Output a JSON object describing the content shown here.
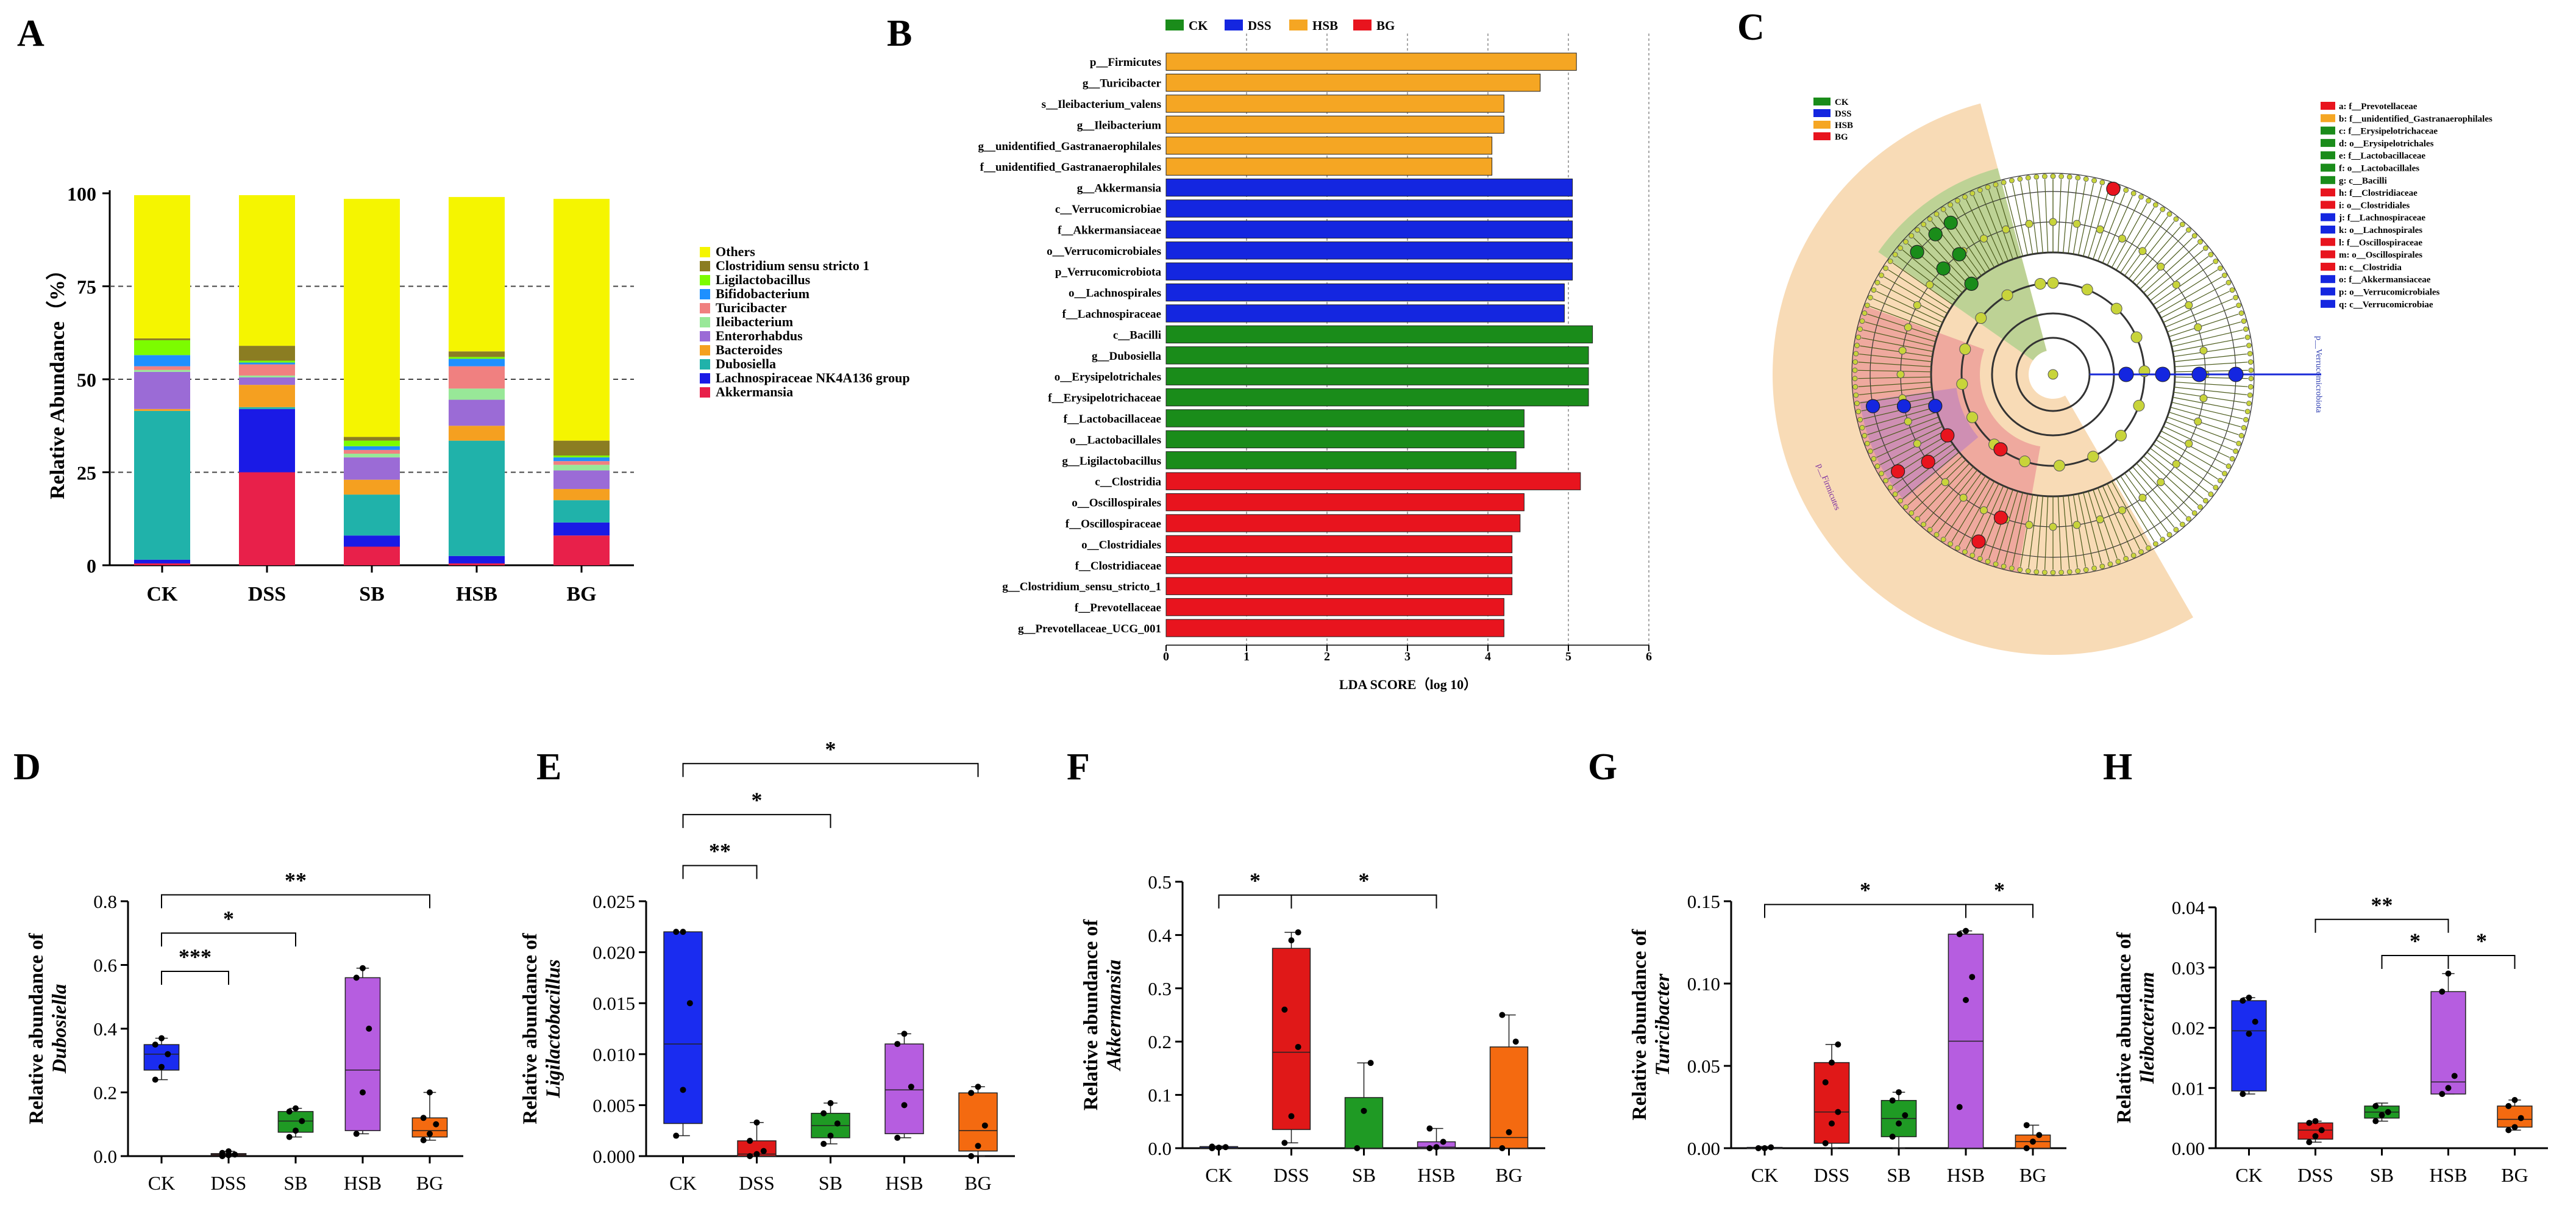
{
  "panel_letters": [
    "A",
    "B",
    "C",
    "D",
    "E",
    "F",
    "G",
    "H"
  ],
  "colors": {
    "CK": "#1a8c1a",
    "DSS": "#1426e0",
    "HSB": "#f5a623",
    "BG": "#e8141e",
    "box_CK": "#1a2cf0",
    "box_DSS": "#e01818",
    "box_SB": "#1f9a24",
    "box_HSB": "#b65de0",
    "box_BG": "#f46a10"
  },
  "chart_data": [
    {
      "panel": "A",
      "type": "bar",
      "stacked": true,
      "title": "",
      "ylabel": "Relative Abundance（%）",
      "xlabel": "",
      "ylim": [
        0,
        100
      ],
      "yticks": [
        "0",
        "25",
        "50",
        "75",
        "100"
      ],
      "categories": [
        "CK",
        "DSS",
        "SB",
        "HSB",
        "BG"
      ],
      "series": [
        {
          "name": "Akkermansia",
          "color": "#e8204a",
          "values": [
            0.5,
            25,
            5,
            0.5,
            8
          ]
        },
        {
          "name": "Lachnospiraceae NK4A136 group",
          "color": "#1a1ae6",
          "values": [
            1,
            17,
            3,
            2,
            3.5
          ]
        },
        {
          "name": "Dubosiella",
          "color": "#20b2aa",
          "values": [
            40,
            0.5,
            11,
            31,
            6
          ]
        },
        {
          "name": "Bacteroides",
          "color": "#f5a020",
          "values": [
            0.5,
            6,
            4,
            4,
            3
          ]
        },
        {
          "name": "Enterorhabdus",
          "color": "#9b6bd6",
          "values": [
            10,
            2,
            6,
            7,
            5
          ]
        },
        {
          "name": "Ileibacterium",
          "color": "#98e898",
          "values": [
            0.5,
            0.5,
            1,
            3,
            1.5
          ]
        },
        {
          "name": "Turicibacter",
          "color": "#f08080",
          "values": [
            1,
            3,
            1,
            6,
            1
          ]
        },
        {
          "name": "Bifidobacterium",
          "color": "#1e90ff",
          "values": [
            3,
            0.5,
            1,
            2,
            1
          ]
        },
        {
          "name": "Ligilactobacillus",
          "color": "#7cfc00",
          "values": [
            4,
            0.5,
            1.5,
            0.5,
            0.5
          ]
        },
        {
          "name": "Clostridium sensu stricto 1",
          "color": "#8b7d22",
          "values": [
            0.5,
            4,
            1,
            1.5,
            4
          ]
        },
        {
          "name": "Others",
          "color": "#f5f500",
          "values": [
            38.5,
            40.5,
            64,
            41.5,
            65
          ]
        }
      ],
      "legend_order": [
        "Others",
        "Clostridium sensu stricto 1",
        "Ligilactobacillus",
        "Bifidobacterium",
        "Turicibacter",
        "Ileibacterium",
        "Enterorhabdus",
        "Bacteroides",
        "Dubosiella",
        "Lachnospiraceae NK4A136 group",
        "Akkermansia"
      ]
    },
    {
      "panel": "B",
      "type": "bar",
      "orientation": "horizontal",
      "title": "",
      "xlabel": "LDA SCORE（log 10）",
      "xlim": [
        0,
        6
      ],
      "xticks": [
        "0",
        "1",
        "2",
        "3",
        "4",
        "5",
        "6"
      ],
      "legend": [
        "CK",
        "DSS",
        "HSB",
        "BG"
      ],
      "bars": [
        {
          "label": "p__Firmicutes",
          "group": "HSB",
          "value": 5.1
        },
        {
          "label": "g__Turicibacter",
          "group": "HSB",
          "value": 4.65
        },
        {
          "label": "s__Ileibacterium_valens",
          "group": "HSB",
          "value": 4.2
        },
        {
          "label": "g__Ileibacterium",
          "group": "HSB",
          "value": 4.2
        },
        {
          "label": "g__unidentified_Gastranaerophilales",
          "group": "HSB",
          "value": 4.05
        },
        {
          "label": "f__unidentified_Gastranaerophilales",
          "group": "HSB",
          "value": 4.05
        },
        {
          "label": "g__Akkermansia",
          "group": "DSS",
          "value": 5.05
        },
        {
          "label": "c__Verrucomicrobiae",
          "group": "DSS",
          "value": 5.05
        },
        {
          "label": "f__Akkermansiaceae",
          "group": "DSS",
          "value": 5.05
        },
        {
          "label": "o__Verrucomicrobiales",
          "group": "DSS",
          "value": 5.05
        },
        {
          "label": "p_Verrucomicrobiota",
          "group": "DSS",
          "value": 5.05
        },
        {
          "label": "o__Lachnospirales",
          "group": "DSS",
          "value": 4.95
        },
        {
          "label": "f__Lachnospiraceae",
          "group": "DSS",
          "value": 4.95
        },
        {
          "label": "c__Bacilli",
          "group": "CK",
          "value": 5.3
        },
        {
          "label": "g__Dubosiella",
          "group": "CK",
          "value": 5.25
        },
        {
          "label": "o__Erysipelotrichales",
          "group": "CK",
          "value": 5.25
        },
        {
          "label": "f__Erysipelotrichaceae",
          "group": "CK",
          "value": 5.25
        },
        {
          "label": "f__Lactobacillaceae",
          "group": "CK",
          "value": 4.45
        },
        {
          "label": "o__Lactobacillales",
          "group": "CK",
          "value": 4.45
        },
        {
          "label": "g__Ligilactobacillus",
          "group": "CK",
          "value": 4.35
        },
        {
          "label": "c__Clostridia",
          "group": "BG",
          "value": 5.15
        },
        {
          "label": "o__Oscillospirales",
          "group": "BG",
          "value": 4.45
        },
        {
          "label": "f__Oscillospiraceae",
          "group": "BG",
          "value": 4.4
        },
        {
          "label": "o__Clostridiales",
          "group": "BG",
          "value": 4.3
        },
        {
          "label": "f__Clostridiaceae",
          "group": "BG",
          "value": 4.3
        },
        {
          "label": "g__Clostridium_sensu_stricto_1",
          "group": "BG",
          "value": 4.3
        },
        {
          "label": "f__Prevotellaceae",
          "group": "BG",
          "value": 4.2
        },
        {
          "label": "g__Prevotellaceae_UCG_001",
          "group": "BG",
          "value": 4.2
        }
      ]
    },
    {
      "panel": "C",
      "type": "other",
      "subtype": "cladogram",
      "legend_groups": [
        "CK",
        "DSS",
        "HSB",
        "BG"
      ],
      "outer_label_1": "p__Verrucomicrobiota",
      "outer_label_2": "p__Firmicutes",
      "key": [
        {
          "letter": "a",
          "label": "a: f__Prevotellaceae",
          "group": "BG"
        },
        {
          "letter": "b",
          "label": "b: f__unidentified_Gastranaerophilales",
          "group": "HSB"
        },
        {
          "letter": "c",
          "label": "c: f__Erysipelotrichaceae",
          "group": "CK"
        },
        {
          "letter": "d",
          "label": "d: o__Erysipelotrichales",
          "group": "CK"
        },
        {
          "letter": "e",
          "label": "e: f__Lactobacillaceae",
          "group": "CK"
        },
        {
          "letter": "f",
          "label": "f: o__Lactobacillales",
          "group": "CK"
        },
        {
          "letter": "g",
          "label": "g: c__Bacilli",
          "group": "CK"
        },
        {
          "letter": "h",
          "label": "h: f__Clostridiaceae",
          "group": "BG"
        },
        {
          "letter": "i",
          "label": "i: o__Clostridiales",
          "group": "BG"
        },
        {
          "letter": "j",
          "label": "j: f__Lachnospiraceae",
          "group": "DSS"
        },
        {
          "letter": "k",
          "label": "k: o__Lachnospirales",
          "group": "DSS"
        },
        {
          "letter": "l",
          "label": "l: f__Oscillospiraceae",
          "group": "BG"
        },
        {
          "letter": "m",
          "label": "m: o__Oscillospirales",
          "group": "BG"
        },
        {
          "letter": "n",
          "label": "n: c__Clostridia",
          "group": "BG"
        },
        {
          "letter": "o",
          "label": "o: f__Akkermansiaceae",
          "group": "DSS"
        },
        {
          "letter": "p",
          "label": "p: o__Verrucomicrobiales",
          "group": "DSS"
        },
        {
          "letter": "q",
          "label": "q: c__Verrucomicrobiae",
          "group": "DSS"
        }
      ]
    },
    {
      "panel": "D",
      "type": "box",
      "ylabel_prefix": "Relative abundance of",
      "ylabel_taxon": "Dubosiella",
      "ylim": [
        0,
        0.8
      ],
      "yticks": [
        "0.0",
        "0.2",
        "0.4",
        "0.6",
        "0.8"
      ],
      "categories": [
        "CK",
        "DSS",
        "SB",
        "HSB",
        "BG"
      ],
      "boxes": [
        {
          "min": 0.24,
          "q1": 0.27,
          "median": 0.32,
          "q3": 0.35,
          "max": 0.37,
          "points": [
            0.24,
            0.28,
            0.32,
            0.35,
            0.37
          ]
        },
        {
          "min": 0.0,
          "q1": 0.002,
          "median": 0.005,
          "q3": 0.008,
          "max": 0.015,
          "points": [
            0.0,
            0.003,
            0.005,
            0.01,
            0.015
          ]
        },
        {
          "min": 0.06,
          "q1": 0.075,
          "median": 0.11,
          "q3": 0.14,
          "max": 0.15,
          "points": [
            0.06,
            0.08,
            0.11,
            0.14,
            0.15
          ]
        },
        {
          "min": 0.07,
          "q1": 0.08,
          "median": 0.27,
          "q3": 0.56,
          "max": 0.59,
          "points": [
            0.07,
            0.2,
            0.4,
            0.56,
            0.59
          ]
        },
        {
          "min": 0.05,
          "q1": 0.06,
          "median": 0.08,
          "q3": 0.12,
          "max": 0.2,
          "points": [
            0.05,
            0.07,
            0.1,
            0.12,
            0.2
          ]
        }
      ],
      "brackets": [
        {
          "from": "CK",
          "to": "DSS",
          "label": "***",
          "y": 0.58
        },
        {
          "from": "CK",
          "to": "SB",
          "label": "*",
          "y": 0.7
        },
        {
          "from": "CK",
          "to": "BG",
          "label": "**",
          "y": 0.82
        }
      ]
    },
    {
      "panel": "E",
      "type": "box",
      "ylabel_prefix": "Relative abundance of",
      "ylabel_taxon": "Ligilactobacillus",
      "ylim": [
        0,
        0.025
      ],
      "yticks": [
        "0.000",
        "0.005",
        "0.010",
        "0.015",
        "0.020",
        "0.025"
      ],
      "categories": [
        "CK",
        "DSS",
        "SB",
        "HSB",
        "BG"
      ],
      "boxes": [
        {
          "min": 0.002,
          "q1": 0.0032,
          "median": 0.011,
          "q3": 0.022,
          "max": 0.022,
          "points": [
            0.002,
            0.0065,
            0.015,
            0.022,
            0.022
          ]
        },
        {
          "min": 0.0,
          "q1": 0.0,
          "median": 0.0002,
          "q3": 0.0015,
          "max": 0.0033,
          "points": [
            0.0,
            0.0002,
            0.0005,
            0.0015,
            0.0033
          ]
        },
        {
          "min": 0.0012,
          "q1": 0.0018,
          "median": 0.003,
          "q3": 0.0042,
          "max": 0.0052,
          "points": [
            0.0012,
            0.002,
            0.0032,
            0.0042,
            0.0052
          ]
        },
        {
          "min": 0.0018,
          "q1": 0.0022,
          "median": 0.0065,
          "q3": 0.011,
          "max": 0.012,
          "points": [
            0.0018,
            0.005,
            0.0068,
            0.011,
            0.012
          ]
        },
        {
          "min": 0.0,
          "q1": 0.0005,
          "median": 0.0025,
          "q3": 0.0062,
          "max": 0.0068,
          "points": [
            0.0,
            0.001,
            0.003,
            0.0062,
            0.0068
          ]
        }
      ],
      "brackets": [
        {
          "from": "CK",
          "to": "DSS",
          "label": "**",
          "y": 0.0285
        },
        {
          "from": "CK",
          "to": "SB",
          "label": "*",
          "y": 0.0335
        },
        {
          "from": "CK",
          "to": "BG",
          "label": "*",
          "y": 0.0385
        }
      ]
    },
    {
      "panel": "F",
      "type": "box",
      "ylabel_prefix": "Relative abundance of",
      "ylabel_taxon": "Akkermansia",
      "ylim": [
        0,
        0.5
      ],
      "yticks": [
        "0.0",
        "0.1",
        "0.2",
        "0.3",
        "0.4",
        "0.5"
      ],
      "categories": [
        "CK",
        "DSS",
        "SB",
        "HSB",
        "BG"
      ],
      "boxes": [
        {
          "min": 0.0,
          "q1": 0.0,
          "median": 0.001,
          "q3": 0.003,
          "max": 0.004,
          "points": [
            0.0,
            0.001,
            0.002,
            0.003
          ]
        },
        {
          "min": 0.01,
          "q1": 0.035,
          "median": 0.18,
          "q3": 0.375,
          "max": 0.405,
          "points": [
            0.01,
            0.06,
            0.19,
            0.26,
            0.39,
            0.405
          ]
        },
        {
          "min": 0.0,
          "q1": 0.0,
          "median": 0.0,
          "q3": 0.095,
          "max": 0.16,
          "points": [
            0.0,
            0.07,
            0.16
          ]
        },
        {
          "min": 0.0,
          "q1": 0.0,
          "median": 0.002,
          "q3": 0.012,
          "max": 0.037,
          "points": [
            0.0,
            0.002,
            0.012,
            0.037
          ]
        },
        {
          "min": 0.0,
          "q1": 0.0,
          "median": 0.02,
          "q3": 0.19,
          "max": 0.25,
          "points": [
            0.0,
            0.03,
            0.2,
            0.25
          ]
        }
      ],
      "brackets": [
        {
          "from": "CK",
          "to": "DSS",
          "label": "*",
          "y": 0.475
        },
        {
          "from": "DSS",
          "to": "HSB",
          "label": "*",
          "y": 0.475
        }
      ]
    },
    {
      "panel": "G",
      "type": "box",
      "ylabel_prefix": "Relative abundance of",
      "ylabel_taxon": "Turicibacter",
      "ylim": [
        0,
        0.15
      ],
      "yticks": [
        "0.00",
        "0.05",
        "0.10",
        "0.15"
      ],
      "categories": [
        "CK",
        "DSS",
        "SB",
        "HSB",
        "BG"
      ],
      "boxes": [
        {
          "min": 0.0,
          "q1": 0.0,
          "median": 0.0,
          "q3": 0.0005,
          "max": 0.001,
          "points": [
            0.0,
            0.0,
            0.0005
          ]
        },
        {
          "min": 0.0,
          "q1": 0.003,
          "median": 0.022,
          "q3": 0.052,
          "max": 0.063,
          "points": [
            0.003,
            0.015,
            0.022,
            0.04,
            0.052,
            0.063
          ]
        },
        {
          "min": 0.0,
          "q1": 0.007,
          "median": 0.018,
          "q3": 0.029,
          "max": 0.034,
          "points": [
            0.007,
            0.015,
            0.02,
            0.029,
            0.034
          ]
        },
        {
          "min": 0.0,
          "q1": 0.0,
          "median": 0.065,
          "q3": 0.13,
          "max": 0.132,
          "points": [
            0.025,
            0.09,
            0.104,
            0.13,
            0.132
          ]
        },
        {
          "min": 0.0,
          "q1": 0.0,
          "median": 0.004,
          "q3": 0.008,
          "max": 0.014,
          "points": [
            0.0,
            0.004,
            0.008,
            0.014
          ]
        }
      ],
      "brackets": [
        {
          "from": "CK",
          "to": "HSB",
          "label": "*",
          "y": 0.148
        },
        {
          "from": "HSB",
          "to": "BG",
          "label": "*",
          "y": 0.148
        }
      ]
    },
    {
      "panel": "H",
      "type": "box",
      "ylabel_prefix": "Relative abundance of",
      "ylabel_taxon": "Ileibacterium",
      "ylim": [
        0,
        0.04
      ],
      "yticks": [
        "0.00",
        "0.01",
        "0.02",
        "0.03",
        "0.04"
      ],
      "categories": [
        "CK",
        "DSS",
        "SB",
        "HSB",
        "BG"
      ],
      "boxes": [
        {
          "min": 0.009,
          "q1": 0.0095,
          "median": 0.0195,
          "q3": 0.0245,
          "max": 0.025,
          "points": [
            0.009,
            0.019,
            0.021,
            0.0245,
            0.025
          ]
        },
        {
          "min": 0.001,
          "q1": 0.0015,
          "median": 0.003,
          "q3": 0.0042,
          "max": 0.0045,
          "points": [
            0.001,
            0.002,
            0.003,
            0.0042,
            0.0045
          ]
        },
        {
          "min": 0.0045,
          "q1": 0.005,
          "median": 0.006,
          "q3": 0.007,
          "max": 0.0075,
          "points": [
            0.0045,
            0.0055,
            0.006,
            0.007
          ]
        },
        {
          "min": 0.009,
          "q1": 0.009,
          "median": 0.011,
          "q3": 0.026,
          "max": 0.029,
          "points": [
            0.009,
            0.01,
            0.012,
            0.026,
            0.029
          ]
        },
        {
          "min": 0.003,
          "q1": 0.0035,
          "median": 0.0048,
          "q3": 0.007,
          "max": 0.008,
          "points": [
            0.003,
            0.0035,
            0.005,
            0.007,
            0.008
          ]
        }
      ],
      "brackets": [
        {
          "from": "DSS",
          "to": "HSB",
          "label": "**",
          "y": 0.038
        },
        {
          "from": "SB",
          "to": "HSB",
          "label": "*",
          "y": 0.032
        },
        {
          "from": "HSB",
          "to": "BG",
          "label": "*",
          "y": 0.032
        }
      ]
    }
  ]
}
